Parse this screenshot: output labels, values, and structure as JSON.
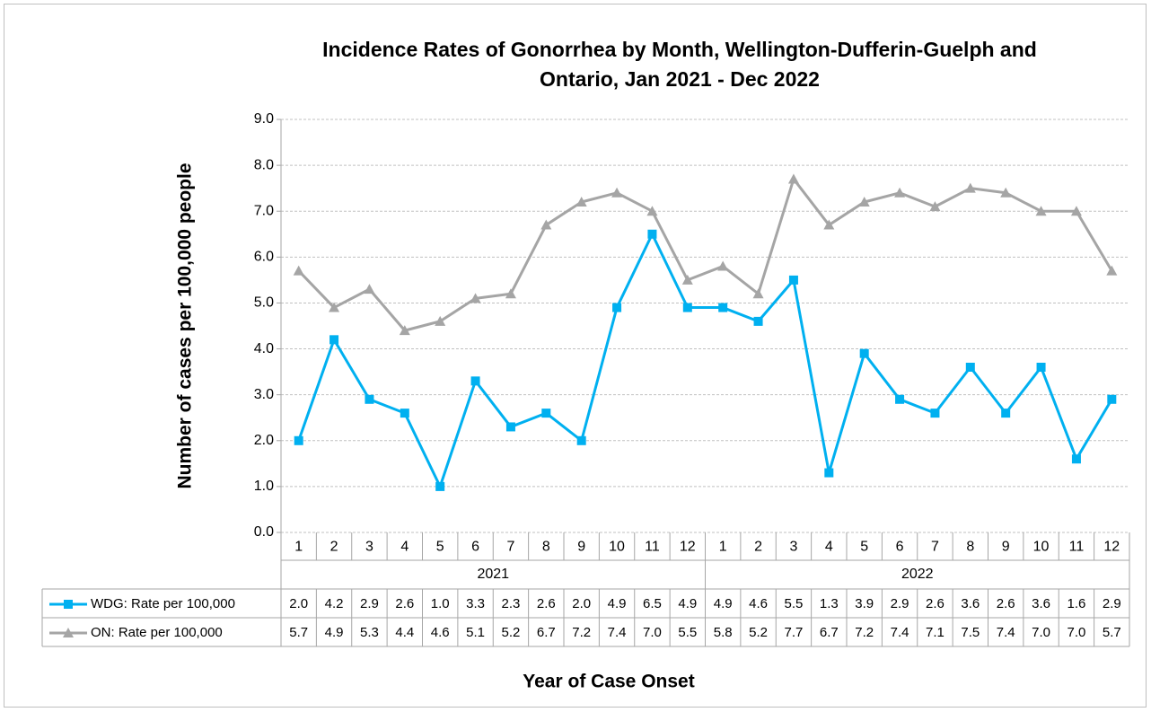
{
  "chart_data": {
    "type": "line",
    "title": [
      "Incidence Rates of Gonorrhea by Month, Wellington-Dufferin-Guelph and",
      "Ontario, Jan 2021 - Dec 2022"
    ],
    "y_label": "Number of cases per 100,000 people",
    "x_label": "Year of Case Onset",
    "categories": [
      "1",
      "2",
      "3",
      "4",
      "5",
      "6",
      "7",
      "8",
      "9",
      "10",
      "11",
      "12",
      "1",
      "2",
      "3",
      "4",
      "5",
      "6",
      "7",
      "8",
      "9",
      "10",
      "11",
      "12"
    ],
    "x_groups": [
      "2021",
      "2022"
    ],
    "series": [
      {
        "name": "WDG: Rate per 100,000",
        "color": "#00b0f0",
        "marker": "square",
        "values": [
          2.0,
          4.2,
          2.9,
          2.6,
          1.0,
          3.3,
          2.3,
          2.6,
          2.0,
          4.9,
          6.5,
          4.9,
          4.9,
          4.6,
          5.5,
          1.3,
          3.9,
          2.9,
          2.6,
          3.6,
          2.6,
          3.6,
          1.6,
          2.9
        ],
        "value_labels": [
          "2.0",
          "4.2",
          "2.9",
          "2.6",
          "1.0",
          "3.3",
          "2.3",
          "2.6",
          "2.0",
          "4.9",
          "6.5",
          "4.9",
          "4.9",
          "4.6",
          "5.5",
          "1.3",
          "3.9",
          "2.9",
          "2.6",
          "3.6",
          "2.6",
          "3.6",
          "1.6",
          "2.9"
        ]
      },
      {
        "name": "ON: Rate per 100,000",
        "color": "#a5a5a5",
        "marker": "triangle",
        "values": [
          5.7,
          4.9,
          5.3,
          4.4,
          4.6,
          5.1,
          5.2,
          6.7,
          7.2,
          7.4,
          7.0,
          5.5,
          5.8,
          5.2,
          7.7,
          6.7,
          7.2,
          7.4,
          7.1,
          7.5,
          7.4,
          7.0,
          7.0,
          5.7
        ],
        "value_labels": [
          "5.7",
          "4.9",
          "5.3",
          "4.4",
          "4.6",
          "5.1",
          "5.2",
          "6.7",
          "7.2",
          "7.4",
          "7.0",
          "5.5",
          "5.8",
          "5.2",
          "7.7",
          "6.7",
          "7.2",
          "7.4",
          "7.1",
          "7.5",
          "7.4",
          "7.0",
          "7.0",
          "5.7"
        ]
      }
    ],
    "ylim": [
      0,
      9
    ],
    "yticks": [
      {
        "value": 0,
        "label": "0.0"
      },
      {
        "value": 1,
        "label": "1.0"
      },
      {
        "value": 2,
        "label": "2.0"
      },
      {
        "value": 3,
        "label": "3.0"
      },
      {
        "value": 4,
        "label": "4.0"
      },
      {
        "value": 5,
        "label": "5.0"
      },
      {
        "value": 6,
        "label": "6.0"
      },
      {
        "value": 7,
        "label": "7.0"
      },
      {
        "value": 8,
        "label": "8.0"
      },
      {
        "value": 9,
        "label": "9.0"
      }
    ],
    "grid": true
  }
}
